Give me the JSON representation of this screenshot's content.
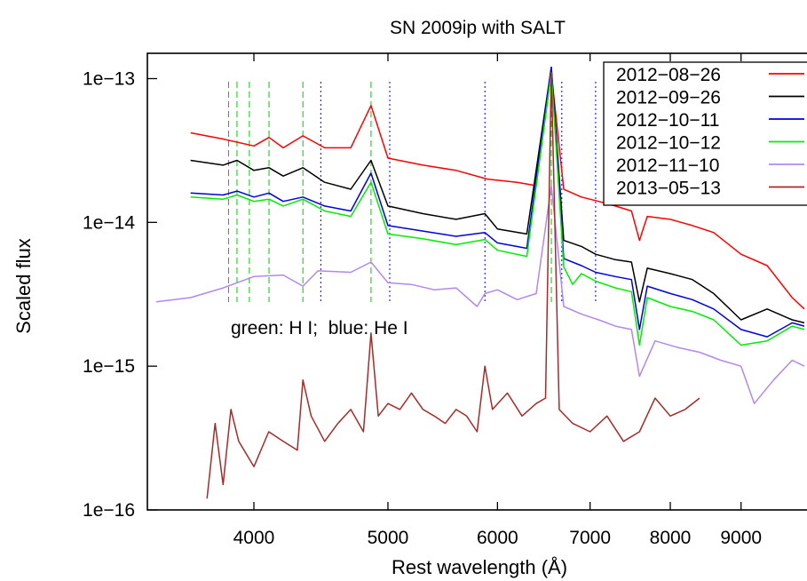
{
  "chart_data": {
    "type": "line",
    "title": "SN 2009ip with SALT",
    "xlabel": "Rest wavelength (Å)",
    "ylabel": "Scaled flux",
    "x_scale": "log",
    "y_scale": "log",
    "xlim": [
      3350,
      10300
    ],
    "ylim": [
      1e-16,
      1.5e-13
    ],
    "x_ticks": [
      {
        "value": 4000,
        "label": "4000"
      },
      {
        "value": 5000,
        "label": "5000"
      },
      {
        "value": 6000,
        "label": "6000"
      },
      {
        "value": 7000,
        "label": "7000"
      },
      {
        "value": 8000,
        "label": "8000"
      },
      {
        "value": 9000,
        "label": "9000"
      }
    ],
    "y_ticks": [
      {
        "value": 1e-13,
        "label": "1e−13"
      },
      {
        "value": 1e-14,
        "label": "1e−14"
      },
      {
        "value": 1e-15,
        "label": "1e−15"
      },
      {
        "value": 1e-16,
        "label": "1e−16"
      }
    ],
    "grid": false,
    "legend_position": "top-right",
    "annotation": "green: H I;  blue: He I",
    "marker_lines": [
      {
        "x": 3835,
        "color": "#00cc00"
      },
      {
        "x": 3889,
        "color": "#00cc00"
      },
      {
        "x": 3970,
        "color": "#00cc00"
      },
      {
        "x": 4102,
        "color": "#00cc00"
      },
      {
        "x": 4340,
        "color": "#00cc00"
      },
      {
        "x": 4861,
        "color": "#00cc00"
      },
      {
        "x": 6563,
        "color": "#00cc00"
      },
      {
        "x": 4471,
        "color": "#0000dd"
      },
      {
        "x": 5015,
        "color": "#0000dd"
      },
      {
        "x": 5876,
        "color": "#0000dd"
      },
      {
        "x": 6678,
        "color": "#0000dd"
      },
      {
        "x": 7065,
        "color": "#0000dd"
      }
    ],
    "series": [
      {
        "name": "2012−08−26",
        "color": "#ff0000",
        "x": [
          3600,
          3800,
          4000,
          4102,
          4200,
          4340,
          4500,
          4700,
          4861,
          5000,
          5300,
          5600,
          5900,
          6200,
          6400,
          6563,
          6700,
          6900,
          7100,
          7300,
          7500,
          7600,
          7700,
          8000,
          8300,
          8600,
          9000,
          9400,
          9800,
          10000
        ],
        "y": [
          4.2e-14,
          3.8e-14,
          3.4e-14,
          3.9e-14,
          3.3e-14,
          4e-14,
          3.3e-14,
          3.3e-14,
          6.5e-14,
          2.8e-14,
          2.5e-14,
          2.3e-14,
          2e-14,
          1.9e-14,
          1.8e-14,
          1.1e-13,
          1.7e-14,
          1.5e-14,
          1.4e-14,
          1.3e-14,
          1.2e-14,
          7.5e-15,
          1.1e-14,
          1.05e-14,
          9.5e-15,
          8.5e-15,
          6e-15,
          5e-15,
          3e-15,
          2.5e-15
        ]
      },
      {
        "name": "2012−09−26",
        "color": "#000000",
        "x": [
          3600,
          3800,
          3889,
          4000,
          4102,
          4200,
          4340,
          4500,
          4700,
          4861,
          5000,
          5300,
          5600,
          5876,
          6000,
          6300,
          6563,
          6700,
          6900,
          7065,
          7300,
          7500,
          7600,
          7700,
          8000,
          8300,
          8600,
          9000,
          9400,
          9800,
          10000
        ],
        "y": [
          2.7e-14,
          2.5e-14,
          2.7e-14,
          2.3e-14,
          2.4e-14,
          2.1e-14,
          2.4e-14,
          1.9e-14,
          1.7e-14,
          2.7e-14,
          1.3e-14,
          1.15e-14,
          1.05e-14,
          1.15e-14,
          9e-15,
          8.3e-15,
          1.2e-13,
          7.5e-15,
          6.8e-15,
          6e-15,
          5.5e-15,
          5.3e-15,
          2.8e-15,
          4.8e-15,
          4.4e-15,
          4e-15,
          3.2e-15,
          2.1e-15,
          2.5e-15,
          2.1e-15,
          2e-15
        ]
      },
      {
        "name": "2012−10−11",
        "color": "#0000dd",
        "x": [
          3600,
          3800,
          3889,
          4000,
          4102,
          4200,
          4340,
          4500,
          4700,
          4861,
          5000,
          5300,
          5600,
          5876,
          6000,
          6300,
          6563,
          6700,
          6900,
          7065,
          7300,
          7500,
          7600,
          7700,
          8000,
          8300,
          8600,
          9000,
          9400,
          9800,
          10000
        ],
        "y": [
          1.6e-14,
          1.55e-14,
          1.65e-14,
          1.5e-14,
          1.6e-14,
          1.4e-14,
          1.5e-14,
          1.3e-14,
          1.2e-14,
          2.2e-14,
          9.5e-15,
          8.7e-15,
          8e-15,
          8.5e-15,
          7.2e-15,
          6.6e-15,
          1.2e-13,
          5.6e-15,
          5e-15,
          4.5e-15,
          4.2e-15,
          4e-15,
          1.8e-15,
          3.6e-15,
          3.2e-15,
          2.9e-15,
          2.5e-15,
          1.8e-15,
          1.6e-15,
          2e-15,
          1.9e-15
        ]
      },
      {
        "name": "2012−10−12",
        "color": "#00ee00",
        "x": [
          3600,
          3800,
          3889,
          4000,
          4102,
          4200,
          4340,
          4500,
          4700,
          4861,
          5000,
          5300,
          5600,
          5876,
          6000,
          6300,
          6563,
          6700,
          6800,
          6900,
          7065,
          7300,
          7500,
          7600,
          7700,
          8000,
          8300,
          8600,
          9000,
          9400,
          9800,
          10000
        ],
        "y": [
          1.5e-14,
          1.45e-14,
          1.55e-14,
          1.4e-14,
          1.45e-14,
          1.3e-14,
          1.45e-14,
          1.2e-14,
          1.1e-14,
          1.9e-14,
          8.3e-15,
          7.7e-15,
          7e-15,
          7.6e-15,
          6.4e-15,
          5.8e-15,
          1.1e-13,
          4.9e-15,
          3.7e-15,
          4.4e-15,
          3.9e-15,
          3.5e-15,
          3.3e-15,
          1.4e-15,
          3e-15,
          2.6e-15,
          2.4e-15,
          2.1e-15,
          1.4e-15,
          1.5e-15,
          1.9e-15,
          1.8e-15
        ]
      },
      {
        "name": "2012−11−10",
        "color": "#b288f0",
        "x": [
          3400,
          3600,
          3800,
          4000,
          4200,
          4340,
          4450,
          4700,
          4861,
          5000,
          5200,
          5400,
          5600,
          5800,
          5876,
          6000,
          6200,
          6400,
          6563,
          6700,
          6900,
          7100,
          7300,
          7500,
          7600,
          7800,
          8100,
          8400,
          8700,
          9000,
          9200,
          9500,
          9800,
          10000
        ],
        "y": [
          2.8e-15,
          3e-15,
          3.5e-15,
          4.2e-15,
          4.3e-15,
          3.6e-15,
          4.6e-15,
          4.5e-15,
          5.3e-15,
          3.8e-15,
          3.7e-15,
          3.4e-15,
          3.5e-15,
          2.6e-15,
          3.2e-15,
          3.4e-15,
          2.9e-15,
          3.2e-15,
          1.8e-14,
          2.6e-15,
          2.3e-15,
          2.1e-15,
          1.9e-15,
          1.8e-15,
          8.5e-16,
          1.5e-15,
          1.35e-15,
          1.25e-15,
          1.1e-15,
          1e-15,
          5.5e-16,
          8e-16,
          1.1e-15,
          1e-15
        ]
      },
      {
        "name": "2013−05−13",
        "color": "#a52a2a",
        "x": [
          3700,
          3750,
          3800,
          3850,
          3900,
          4000,
          4100,
          4200,
          4300,
          4340,
          4400,
          4500,
          4600,
          4700,
          4800,
          4861,
          4920,
          5000,
          5100,
          5200,
          5300,
          5400,
          5500,
          5600,
          5700,
          5800,
          5876,
          5950,
          6100,
          6250,
          6400,
          6500,
          6563,
          6650,
          6800,
          7000,
          7200,
          7400,
          7600,
          7800,
          8000,
          8200,
          8400
        ],
        "y": [
          1.2e-16,
          4e-16,
          1.5e-16,
          5e-16,
          3e-16,
          2e-16,
          3.5e-16,
          3e-16,
          2.6e-16,
          8e-16,
          4.5e-16,
          3e-16,
          4e-16,
          5e-16,
          3.5e-16,
          1.7e-15,
          4.5e-16,
          5.5e-16,
          5e-16,
          6.5e-16,
          5e-16,
          4.5e-16,
          4e-16,
          5e-16,
          4.5e-16,
          3.5e-16,
          1e-15,
          5e-16,
          6.5e-16,
          4.5e-16,
          5.5e-16,
          6e-16,
          1.1e-13,
          5e-16,
          4e-16,
          3.5e-16,
          4.5e-16,
          3e-16,
          3.5e-16,
          6e-16,
          4.5e-16,
          5e-16,
          6e-16
        ]
      }
    ]
  }
}
